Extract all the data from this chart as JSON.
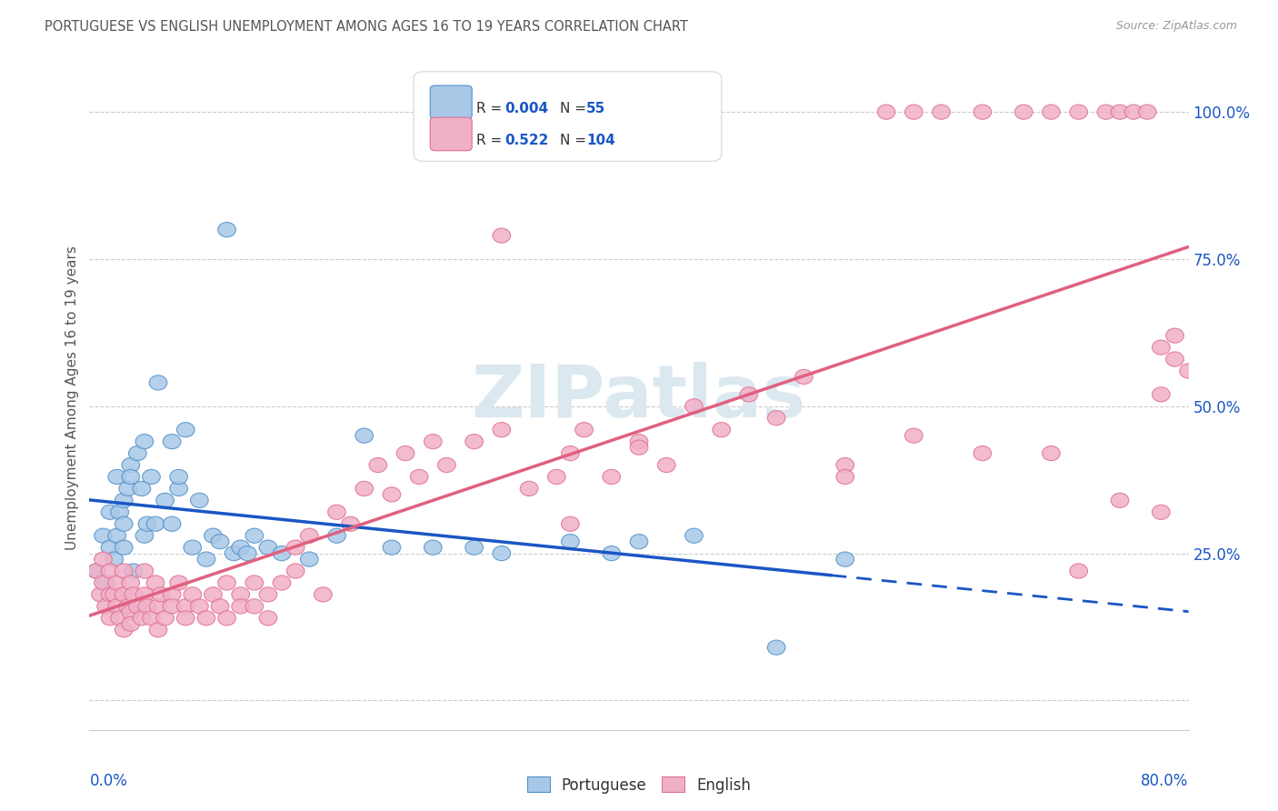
{
  "title": "PORTUGUESE VS ENGLISH UNEMPLOYMENT AMONG AGES 16 TO 19 YEARS CORRELATION CHART",
  "source": "Source: ZipAtlas.com",
  "ylabel": "Unemployment Among Ages 16 to 19 years",
  "xlim": [
    0.0,
    0.8
  ],
  "ylim": [
    -0.05,
    1.08
  ],
  "yticks": [
    0.0,
    0.25,
    0.5,
    0.75,
    1.0
  ],
  "ytick_labels": [
    "",
    "25.0%",
    "50.0%",
    "75.0%",
    "100.0%"
  ],
  "portuguese_R": "0.004",
  "portuguese_N": "55",
  "english_R": "0.522",
  "english_N": "104",
  "blue_fill": "#a8c8e8",
  "pink_fill": "#f0b0c8",
  "blue_edge": "#5090c8",
  "pink_edge": "#e07090",
  "blue_line_color": "#1a56c4",
  "pink_line_color": "#e06080",
  "label_dark": "#333333",
  "label_blue": "#1a56c4",
  "title_color": "#555555",
  "source_color": "#999999",
  "watermark_color": "#dce8f0",
  "background_color": "#ffffff",
  "portuguese_x": [
    0.005,
    0.01,
    0.012,
    0.015,
    0.015,
    0.018,
    0.02,
    0.02,
    0.022,
    0.025,
    0.025,
    0.025,
    0.028,
    0.03,
    0.03,
    0.032,
    0.035,
    0.038,
    0.04,
    0.04,
    0.042,
    0.045,
    0.048,
    0.05,
    0.055,
    0.06,
    0.06,
    0.065,
    0.065,
    0.07,
    0.075,
    0.08,
    0.085,
    0.09,
    0.095,
    0.1,
    0.105,
    0.11,
    0.115,
    0.12,
    0.13,
    0.14,
    0.16,
    0.18,
    0.2,
    0.22,
    0.25,
    0.28,
    0.3,
    0.35,
    0.38,
    0.4,
    0.44,
    0.5,
    0.55
  ],
  "portuguese_y": [
    0.22,
    0.28,
    0.2,
    0.32,
    0.26,
    0.24,
    0.38,
    0.28,
    0.32,
    0.3,
    0.34,
    0.26,
    0.36,
    0.4,
    0.38,
    0.22,
    0.42,
    0.36,
    0.28,
    0.44,
    0.3,
    0.38,
    0.3,
    0.54,
    0.34,
    0.3,
    0.44,
    0.36,
    0.38,
    0.46,
    0.26,
    0.34,
    0.24,
    0.28,
    0.27,
    0.8,
    0.25,
    0.26,
    0.25,
    0.28,
    0.26,
    0.25,
    0.24,
    0.28,
    0.45,
    0.26,
    0.26,
    0.26,
    0.25,
    0.27,
    0.25,
    0.27,
    0.28,
    0.09,
    0.24
  ],
  "english_x": [
    0.005,
    0.008,
    0.01,
    0.01,
    0.012,
    0.015,
    0.015,
    0.015,
    0.018,
    0.02,
    0.02,
    0.022,
    0.025,
    0.025,
    0.025,
    0.028,
    0.03,
    0.03,
    0.03,
    0.032,
    0.035,
    0.038,
    0.04,
    0.04,
    0.042,
    0.045,
    0.048,
    0.05,
    0.05,
    0.052,
    0.055,
    0.06,
    0.06,
    0.065,
    0.07,
    0.07,
    0.075,
    0.08,
    0.085,
    0.09,
    0.095,
    0.1,
    0.1,
    0.11,
    0.11,
    0.12,
    0.12,
    0.13,
    0.13,
    0.14,
    0.15,
    0.15,
    0.16,
    0.17,
    0.18,
    0.19,
    0.2,
    0.21,
    0.22,
    0.23,
    0.24,
    0.25,
    0.26,
    0.28,
    0.3,
    0.32,
    0.34,
    0.35,
    0.36,
    0.38,
    0.4,
    0.42,
    0.44,
    0.46,
    0.48,
    0.5,
    0.52,
    0.55,
    0.58,
    0.6,
    0.62,
    0.65,
    0.68,
    0.7,
    0.72,
    0.74,
    0.75,
    0.76,
    0.77,
    0.78,
    0.78,
    0.79,
    0.79,
    0.8,
    0.3,
    0.35,
    0.4,
    0.55,
    0.6,
    0.65,
    0.7,
    0.72,
    0.75,
    0.78
  ],
  "english_y": [
    0.22,
    0.18,
    0.24,
    0.2,
    0.16,
    0.22,
    0.18,
    0.14,
    0.18,
    0.2,
    0.16,
    0.14,
    0.22,
    0.18,
    0.12,
    0.16,
    0.2,
    0.15,
    0.13,
    0.18,
    0.16,
    0.14,
    0.18,
    0.22,
    0.16,
    0.14,
    0.2,
    0.16,
    0.12,
    0.18,
    0.14,
    0.18,
    0.16,
    0.2,
    0.16,
    0.14,
    0.18,
    0.16,
    0.14,
    0.18,
    0.16,
    0.2,
    0.14,
    0.18,
    0.16,
    0.2,
    0.16,
    0.14,
    0.18,
    0.2,
    0.26,
    0.22,
    0.28,
    0.18,
    0.32,
    0.3,
    0.36,
    0.4,
    0.35,
    0.42,
    0.38,
    0.44,
    0.4,
    0.44,
    0.46,
    0.36,
    0.38,
    0.42,
    0.46,
    0.38,
    0.44,
    0.4,
    0.5,
    0.46,
    0.52,
    0.48,
    0.55,
    0.4,
    1.0,
    1.0,
    1.0,
    1.0,
    1.0,
    1.0,
    1.0,
    1.0,
    1.0,
    1.0,
    1.0,
    0.6,
    0.52,
    0.62,
    0.58,
    0.56,
    0.79,
    0.3,
    0.43,
    0.38,
    0.45,
    0.42,
    0.42,
    0.22,
    0.34,
    0.32
  ]
}
